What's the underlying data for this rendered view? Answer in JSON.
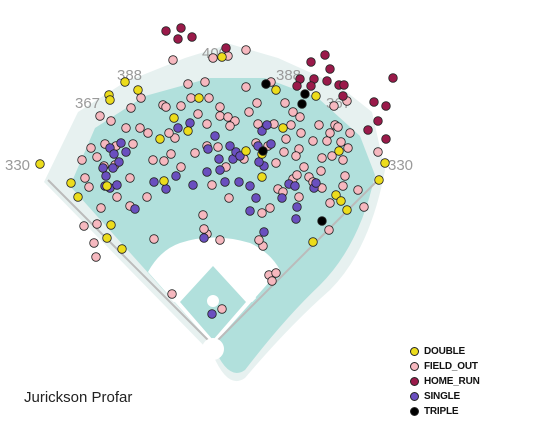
{
  "player_name": "Jurickson Profar",
  "outcome_colors": {
    "DOUBLE": "#ecdc1c",
    "FIELD_OUT": "#f6b8bf",
    "HOME_RUN": "#9a1a4a",
    "SINGLE": "#6a4fbf",
    "TRIPLE": "#000000"
  },
  "field_colors": {
    "grass": "#b1e0dc",
    "warning_track": "#e7f1f0",
    "foul_line": "#bbbbbb",
    "infield_dirt": "#ffffff"
  },
  "chart_data": {
    "type": "scatter",
    "title": "",
    "xlabel": "",
    "ylabel": "",
    "fence_distances": [
      {
        "label": "330"
      },
      {
        "label": "367"
      },
      {
        "label": "388"
      },
      {
        "label": "400"
      },
      {
        "label": "388"
      },
      {
        "label": "367"
      },
      {
        "label": "330"
      }
    ],
    "legend": [
      {
        "label": "DOUBLE",
        "outcome": "DOUBLE"
      },
      {
        "label": "FIELD_OUT",
        "outcome": "FIELD_OUT"
      },
      {
        "label": "HOME_RUN",
        "outcome": "HOME_RUN"
      },
      {
        "label": "SINGLE",
        "outcome": "SINGLE"
      },
      {
        "label": "TRIPLE",
        "outcome": "TRIPLE"
      }
    ],
    "series": [
      {
        "name": "DOUBLE",
        "points": [
          [
            40,
            164
          ],
          [
            125,
            82
          ],
          [
            109,
            95
          ],
          [
            138,
            90
          ],
          [
            110,
            100
          ],
          [
            160,
            139
          ],
          [
            71,
            183
          ],
          [
            78,
            197
          ],
          [
            107,
            186
          ],
          [
            111,
            225
          ],
          [
            107,
            238
          ],
          [
            122,
            249
          ],
          [
            164,
            181
          ],
          [
            188,
            131
          ],
          [
            174,
            118
          ],
          [
            199,
            98
          ],
          [
            276,
            90
          ],
          [
            283,
            128
          ],
          [
            262,
            154
          ],
          [
            246,
            151
          ],
          [
            262,
            177
          ],
          [
            336,
            195
          ],
          [
            341,
            201
          ],
          [
            347,
            210
          ],
          [
            339,
            151
          ],
          [
            385,
            163
          ],
          [
            379,
            180
          ],
          [
            313,
            242
          ],
          [
            316,
            96
          ],
          [
            222,
            57
          ]
        ]
      },
      {
        "name": "FIELD_OUT",
        "points": [
          [
            173,
            60
          ],
          [
            213,
            58
          ],
          [
            228,
            56
          ],
          [
            246,
            50
          ],
          [
            205,
            82
          ],
          [
            188,
            84
          ],
          [
            163,
            105
          ],
          [
            141,
            98
          ],
          [
            131,
            108
          ],
          [
            100,
            116
          ],
          [
            111,
            121
          ],
          [
            126,
            128
          ],
          [
            140,
            128
          ],
          [
            148,
            133
          ],
          [
            133,
            144
          ],
          [
            116,
            146
          ],
          [
            91,
            148
          ],
          [
            97,
            157
          ],
          [
            105,
            144
          ],
          [
            82,
            160
          ],
          [
            104,
            166
          ],
          [
            115,
            165
          ],
          [
            85,
            178
          ],
          [
            89,
            187
          ],
          [
            101,
            208
          ],
          [
            117,
            197
          ],
          [
            97,
            224
          ],
          [
            84,
            226
          ],
          [
            94,
            243
          ],
          [
            96,
            257
          ],
          [
            130,
            178
          ],
          [
            130,
            206
          ],
          [
            147,
            197
          ],
          [
            153,
            160
          ],
          [
            164,
            161
          ],
          [
            171,
            154
          ],
          [
            181,
            167
          ],
          [
            175,
            138
          ],
          [
            169,
            133
          ],
          [
            166,
            107
          ],
          [
            181,
            106
          ],
          [
            191,
            98
          ],
          [
            209,
            98
          ],
          [
            198,
            114
          ],
          [
            207,
            124
          ],
          [
            220,
            116
          ],
          [
            220,
            107
          ],
          [
            228,
            117
          ],
          [
            235,
            121
          ],
          [
            230,
            126
          ],
          [
            249,
            112
          ],
          [
            257,
            103
          ],
          [
            266,
            84
          ],
          [
            271,
            82
          ],
          [
            246,
            87
          ],
          [
            207,
            146
          ],
          [
            195,
            153
          ],
          [
            218,
            147
          ],
          [
            244,
            159
          ],
          [
            285,
            103
          ],
          [
            293,
            112
          ],
          [
            300,
            117
          ],
          [
            291,
            125
          ],
          [
            301,
            133
          ],
          [
            313,
            141
          ],
          [
            299,
            149
          ],
          [
            296,
            156
          ],
          [
            284,
            152
          ],
          [
            286,
            139
          ],
          [
            268,
            146
          ],
          [
            274,
            124
          ],
          [
            258,
            124
          ],
          [
            256,
            143
          ],
          [
            276,
            163
          ],
          [
            278,
            189
          ],
          [
            293,
            179
          ],
          [
            297,
            175
          ],
          [
            304,
            167
          ],
          [
            309,
            177
          ],
          [
            322,
            158
          ],
          [
            327,
            141
          ],
          [
            330,
            133
          ],
          [
            335,
            125
          ],
          [
            350,
            133
          ],
          [
            341,
            142
          ],
          [
            332,
            156
          ],
          [
            321,
            171
          ],
          [
            313,
            182
          ],
          [
            322,
            188
          ],
          [
            330,
            203
          ],
          [
            343,
            186
          ],
          [
            345,
            176
          ],
          [
            358,
            190
          ],
          [
            364,
            207
          ],
          [
            348,
            148
          ],
          [
            329,
            230
          ],
          [
            299,
            197
          ],
          [
            283,
            192
          ],
          [
            270,
            208
          ],
          [
            262,
            213
          ],
          [
            263,
            246
          ],
          [
            259,
            240
          ],
          [
            269,
            275
          ],
          [
            272,
            281
          ],
          [
            276,
            273
          ],
          [
            154,
            239
          ],
          [
            172,
            294
          ],
          [
            222,
            309
          ],
          [
            220,
            240
          ],
          [
            207,
            234
          ],
          [
            203,
            215
          ],
          [
            204,
            229
          ],
          [
            229,
            198
          ],
          [
            212,
            185
          ],
          [
            226,
            167
          ],
          [
            347,
            101
          ],
          [
            338,
            127
          ],
          [
            378,
            152
          ],
          [
            343,
            160
          ],
          [
            319,
            125
          ],
          [
            334,
            106
          ]
        ]
      },
      {
        "name": "HOME_RUN",
        "points": [
          [
            166,
            31
          ],
          [
            181,
            28
          ],
          [
            178,
            39
          ],
          [
            192,
            37
          ],
          [
            226,
            48
          ],
          [
            311,
            62
          ],
          [
            325,
            55
          ],
          [
            314,
            79
          ],
          [
            330,
            69
          ],
          [
            327,
            81
          ],
          [
            339,
            85
          ],
          [
            344,
            85
          ],
          [
            343,
            96
          ],
          [
            393,
            78
          ],
          [
            374,
            102
          ],
          [
            386,
            106
          ],
          [
            378,
            121
          ],
          [
            368,
            130
          ],
          [
            386,
            139
          ],
          [
            311,
            86
          ],
          [
            300,
            79
          ],
          [
            297,
            86
          ]
        ]
      },
      {
        "name": "SINGLE",
        "points": [
          [
            103,
            168
          ],
          [
            106,
            176
          ],
          [
            113,
            168
          ],
          [
            119,
            162
          ],
          [
            126,
            152
          ],
          [
            110,
            148
          ],
          [
            114,
            154
          ],
          [
            121,
            143
          ],
          [
            110,
            188
          ],
          [
            117,
            185
          ],
          [
            105,
            186
          ],
          [
            135,
            209
          ],
          [
            154,
            182
          ],
          [
            166,
            189
          ],
          [
            176,
            176
          ],
          [
            193,
            185
          ],
          [
            207,
            172
          ],
          [
            208,
            149
          ],
          [
            215,
            136
          ],
          [
            219,
            159
          ],
          [
            220,
            170
          ],
          [
            225,
            182
          ],
          [
            239,
            182
          ],
          [
            233,
            159
          ],
          [
            236,
            152
          ],
          [
            240,
            156
          ],
          [
            230,
            146
          ],
          [
            258,
            146
          ],
          [
            250,
            186
          ],
          [
            250,
            211
          ],
          [
            256,
            198
          ],
          [
            264,
            166
          ],
          [
            259,
            162
          ],
          [
            289,
            184
          ],
          [
            295,
            186
          ],
          [
            282,
            198
          ],
          [
            296,
            219
          ],
          [
            297,
            207
          ],
          [
            314,
            188
          ],
          [
            316,
            183
          ],
          [
            271,
            144
          ],
          [
            262,
            131
          ],
          [
            267,
            125
          ],
          [
            178,
            128
          ],
          [
            190,
            123
          ],
          [
            204,
            238
          ],
          [
            264,
            232
          ],
          [
            212,
            314
          ]
        ]
      },
      {
        "name": "TRIPLE",
        "points": [
          [
            266,
            84
          ],
          [
            305,
            94
          ],
          [
            302,
            104
          ],
          [
            263,
            151
          ],
          [
            322,
            221
          ]
        ]
      }
    ]
  }
}
